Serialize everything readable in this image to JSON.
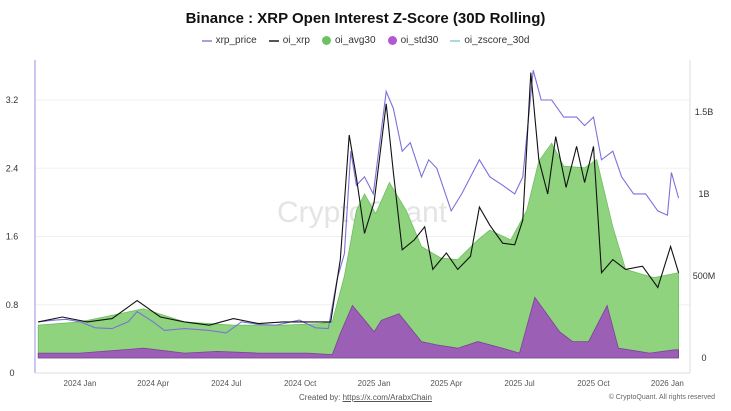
{
  "chart_data": {
    "type": "line",
    "title": "Binance : XRP Open Interest Z-Score (30D Rolling)",
    "legend_position": "top",
    "grid": true,
    "x_ticks": [
      "2024 Jan",
      "2024 Apr",
      "2024 Jul",
      "2024 Oct",
      "2025 Jan",
      "2025 Apr",
      "2025 Jul",
      "2025 Oct",
      "2026 Jan"
    ],
    "x_tick_dates": [
      "2024-01-01",
      "2024-04-01",
      "2024-07-01",
      "2024-10-01",
      "2025-01-01",
      "2025-04-01",
      "2025-07-01",
      "2025-10-01",
      "2026-01-01"
    ],
    "left_axis": {
      "ticks": [
        "0",
        "0.8",
        "1.6",
        "2.4",
        "3.2"
      ],
      "tick_values": [
        0,
        0.8,
        1.6,
        2.4,
        3.2
      ],
      "range": [
        0,
        3.7
      ]
    },
    "right_axis": {
      "ticks": [
        "0",
        "500M",
        "1B",
        "1.5B"
      ],
      "tick_values": [
        0,
        0.5,
        1,
        1.5
      ],
      "unit": "billions",
      "range": [
        0,
        1.9
      ]
    },
    "series": [
      {
        "name": "xrp_price",
        "kind": "line",
        "axis": "left",
        "color": "#7b72d9",
        "points": [
          [
            "2023-11-10",
            0.6
          ],
          [
            "2023-12-01",
            0.62
          ],
          [
            "2023-12-15",
            0.63
          ],
          [
            "2024-01-01",
            0.6
          ],
          [
            "2024-01-20",
            0.53
          ],
          [
            "2024-02-10",
            0.52
          ],
          [
            "2024-03-01",
            0.6
          ],
          [
            "2024-03-12",
            0.72
          ],
          [
            "2024-04-01",
            0.6
          ],
          [
            "2024-04-15",
            0.5
          ],
          [
            "2024-05-10",
            0.52
          ],
          [
            "2024-06-10",
            0.5
          ],
          [
            "2024-07-01",
            0.47
          ],
          [
            "2024-07-20",
            0.6
          ],
          [
            "2024-08-10",
            0.57
          ],
          [
            "2024-09-01",
            0.56
          ],
          [
            "2024-09-30",
            0.62
          ],
          [
            "2024-10-20",
            0.53
          ],
          [
            "2024-11-05",
            0.52
          ],
          [
            "2024-11-16",
            1.1
          ],
          [
            "2024-11-25",
            1.4
          ],
          [
            "2024-12-03",
            2.6
          ],
          [
            "2024-12-10",
            2.2
          ],
          [
            "2024-12-20",
            2.3
          ],
          [
            "2024-12-31",
            2.1
          ],
          [
            "2025-01-16",
            3.3
          ],
          [
            "2025-01-25",
            3.1
          ],
          [
            "2025-02-05",
            2.6
          ],
          [
            "2025-02-15",
            2.7
          ],
          [
            "2025-03-01",
            2.3
          ],
          [
            "2025-03-10",
            2.5
          ],
          [
            "2025-03-20",
            2.4
          ],
          [
            "2025-04-07",
            1.9
          ],
          [
            "2025-04-20",
            2.1
          ],
          [
            "2025-05-12",
            2.5
          ],
          [
            "2025-05-25",
            2.3
          ],
          [
            "2025-06-10",
            2.2
          ],
          [
            "2025-06-25",
            2.1
          ],
          [
            "2025-07-05",
            2.3
          ],
          [
            "2025-07-18",
            3.55
          ],
          [
            "2025-07-28",
            3.2
          ],
          [
            "2025-08-10",
            3.2
          ],
          [
            "2025-08-25",
            3.0
          ],
          [
            "2025-09-10",
            3.0
          ],
          [
            "2025-09-20",
            2.9
          ],
          [
            "2025-10-01",
            3.0
          ],
          [
            "2025-10-11",
            2.5
          ],
          [
            "2025-10-25",
            2.6
          ],
          [
            "2025-11-05",
            2.3
          ],
          [
            "2025-11-20",
            2.1
          ],
          [
            "2025-12-05",
            2.1
          ],
          [
            "2025-12-20",
            1.9
          ],
          [
            "2026-01-01",
            1.85
          ],
          [
            "2026-01-06",
            2.35
          ],
          [
            "2026-01-15",
            2.05
          ]
        ]
      },
      {
        "name": "oi_xrp",
        "kind": "line",
        "axis": "right",
        "color": "#111111",
        "points": [
          [
            "2023-11-10",
            0.22
          ],
          [
            "2023-12-10",
            0.25
          ],
          [
            "2024-01-10",
            0.22
          ],
          [
            "2024-02-10",
            0.24
          ],
          [
            "2024-03-12",
            0.35
          ],
          [
            "2024-04-10",
            0.25
          ],
          [
            "2024-05-10",
            0.22
          ],
          [
            "2024-06-10",
            0.2
          ],
          [
            "2024-07-10",
            0.24
          ],
          [
            "2024-08-10",
            0.21
          ],
          [
            "2024-09-10",
            0.22
          ],
          [
            "2024-10-10",
            0.22
          ],
          [
            "2024-11-08",
            0.22
          ],
          [
            "2024-11-20",
            0.6
          ],
          [
            "2024-12-01",
            1.36
          ],
          [
            "2024-12-10",
            1.1
          ],
          [
            "2024-12-20",
            0.76
          ],
          [
            "2025-01-01",
            0.95
          ],
          [
            "2025-01-16",
            1.55
          ],
          [
            "2025-01-25",
            1.13
          ],
          [
            "2025-02-05",
            0.66
          ],
          [
            "2025-02-20",
            0.72
          ],
          [
            "2025-03-05",
            0.8
          ],
          [
            "2025-03-15",
            0.54
          ],
          [
            "2025-04-01",
            0.64
          ],
          [
            "2025-04-15",
            0.54
          ],
          [
            "2025-05-01",
            0.62
          ],
          [
            "2025-05-12",
            0.92
          ],
          [
            "2025-05-25",
            0.81
          ],
          [
            "2025-06-10",
            0.7
          ],
          [
            "2025-06-25",
            0.69
          ],
          [
            "2025-07-05",
            0.84
          ],
          [
            "2025-07-15",
            1.74
          ],
          [
            "2025-07-25",
            1.21
          ],
          [
            "2025-08-05",
            1.0
          ],
          [
            "2025-08-15",
            1.35
          ],
          [
            "2025-08-28",
            1.04
          ],
          [
            "2025-09-10",
            1.29
          ],
          [
            "2025-09-20",
            1.07
          ],
          [
            "2025-10-01",
            1.29
          ],
          [
            "2025-10-11",
            0.52
          ],
          [
            "2025-10-25",
            0.6
          ],
          [
            "2025-11-10",
            0.54
          ],
          [
            "2025-12-01",
            0.56
          ],
          [
            "2025-12-20",
            0.43
          ],
          [
            "2026-01-05",
            0.68
          ],
          [
            "2026-01-15",
            0.52
          ]
        ]
      },
      {
        "name": "oi_avg30",
        "kind": "area",
        "axis": "right",
        "color": "#8fd37f",
        "points": [
          [
            "2023-11-10",
            0.2
          ],
          [
            "2024-01-01",
            0.22
          ],
          [
            "2024-03-20",
            0.3
          ],
          [
            "2024-05-10",
            0.22
          ],
          [
            "2024-07-10",
            0.2
          ],
          [
            "2024-09-10",
            0.2
          ],
          [
            "2024-10-25",
            0.21
          ],
          [
            "2024-11-10",
            0.22
          ],
          [
            "2024-11-25",
            0.5
          ],
          [
            "2024-12-10",
            0.9
          ],
          [
            "2024-12-20",
            1.0
          ],
          [
            "2025-01-03",
            0.88
          ],
          [
            "2025-01-20",
            1.07
          ],
          [
            "2025-02-10",
            0.9
          ],
          [
            "2025-03-01",
            0.68
          ],
          [
            "2025-03-25",
            0.61
          ],
          [
            "2025-04-15",
            0.6
          ],
          [
            "2025-05-10",
            0.72
          ],
          [
            "2025-05-25",
            0.78
          ],
          [
            "2025-06-20",
            0.72
          ],
          [
            "2025-07-10",
            0.9
          ],
          [
            "2025-07-25",
            1.2
          ],
          [
            "2025-08-10",
            1.31
          ],
          [
            "2025-08-25",
            1.17
          ],
          [
            "2025-09-20",
            1.16
          ],
          [
            "2025-10-05",
            1.21
          ],
          [
            "2025-10-25",
            0.8
          ],
          [
            "2025-11-10",
            0.54
          ],
          [
            "2025-12-15",
            0.49
          ],
          [
            "2026-01-15",
            0.52
          ]
        ]
      },
      {
        "name": "oi_std30",
        "kind": "area",
        "axis": "right",
        "color": "#9b5fb5",
        "points": [
          [
            "2023-11-10",
            0.03
          ],
          [
            "2024-01-01",
            0.03
          ],
          [
            "2024-03-20",
            0.06
          ],
          [
            "2024-05-10",
            0.03
          ],
          [
            "2024-06-20",
            0.04
          ],
          [
            "2024-08-10",
            0.03
          ],
          [
            "2024-10-10",
            0.03
          ],
          [
            "2024-11-10",
            0.02
          ],
          [
            "2024-11-20",
            0.15
          ],
          [
            "2024-12-05",
            0.32
          ],
          [
            "2024-12-22",
            0.22
          ],
          [
            "2025-01-01",
            0.16
          ],
          [
            "2025-01-10",
            0.23
          ],
          [
            "2025-02-01",
            0.27
          ],
          [
            "2025-03-01",
            0.1
          ],
          [
            "2025-03-20",
            0.08
          ],
          [
            "2025-04-15",
            0.06
          ],
          [
            "2025-05-10",
            0.1
          ],
          [
            "2025-06-10",
            0.06
          ],
          [
            "2025-07-01",
            0.03
          ],
          [
            "2025-07-20",
            0.37
          ],
          [
            "2025-08-20",
            0.16
          ],
          [
            "2025-09-05",
            0.1
          ],
          [
            "2025-09-25",
            0.1
          ],
          [
            "2025-10-18",
            0.32
          ],
          [
            "2025-11-01",
            0.06
          ],
          [
            "2025-12-10",
            0.03
          ],
          [
            "2026-01-10",
            0.05
          ],
          [
            "2026-01-15",
            0.05
          ]
        ]
      },
      {
        "name": "oi_zscore_30d",
        "kind": "line",
        "axis": "right",
        "color": "#9fd6dd",
        "points": []
      }
    ]
  },
  "legend": [
    {
      "label": "xrp_price",
      "marker": "line",
      "color": "#a79fe0"
    },
    {
      "label": "oi_xrp",
      "marker": "line",
      "color": "#555555"
    },
    {
      "label": "oi_avg30",
      "marker": "dot",
      "color": "#6cc160"
    },
    {
      "label": "oi_std30",
      "marker": "dot",
      "color": "#b455d6"
    },
    {
      "label": "oi_zscore_30d",
      "marker": "line",
      "color": "#a9d8e0"
    }
  ],
  "watermark": "CryptoQuant",
  "footer": {
    "created_by": "Created by:",
    "link": "https://x.com/ArabxChain",
    "copyright": "© CryptoQuant. All rights reserved"
  }
}
